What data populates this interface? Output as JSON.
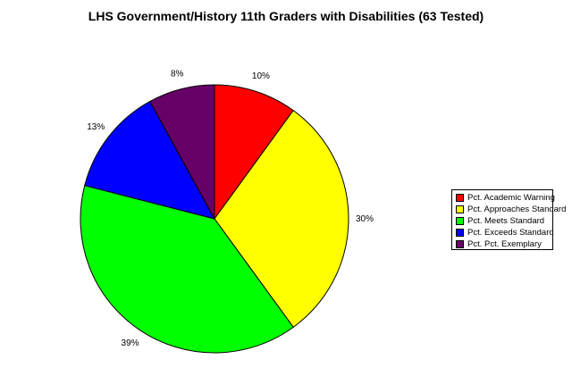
{
  "chart_data": {
    "type": "pie",
    "title": "LHS Government/History 11th Graders with Disabilities (63 Tested)",
    "categories": [
      "Pct. Academic Warning",
      "Pct. Approaches Standard",
      "Pct. Meets Standard",
      "Pct. Exceeds Standard",
      "Pct. Pct. Exemplary"
    ],
    "values": [
      10,
      30,
      39,
      13,
      8
    ],
    "value_labels": [
      "10%",
      "30%",
      "39%",
      "13%",
      "8%"
    ],
    "colors": [
      "#ff0000",
      "#ffff00",
      "#00ff00",
      "#0000ff",
      "#660066"
    ],
    "legend_position": "right"
  }
}
